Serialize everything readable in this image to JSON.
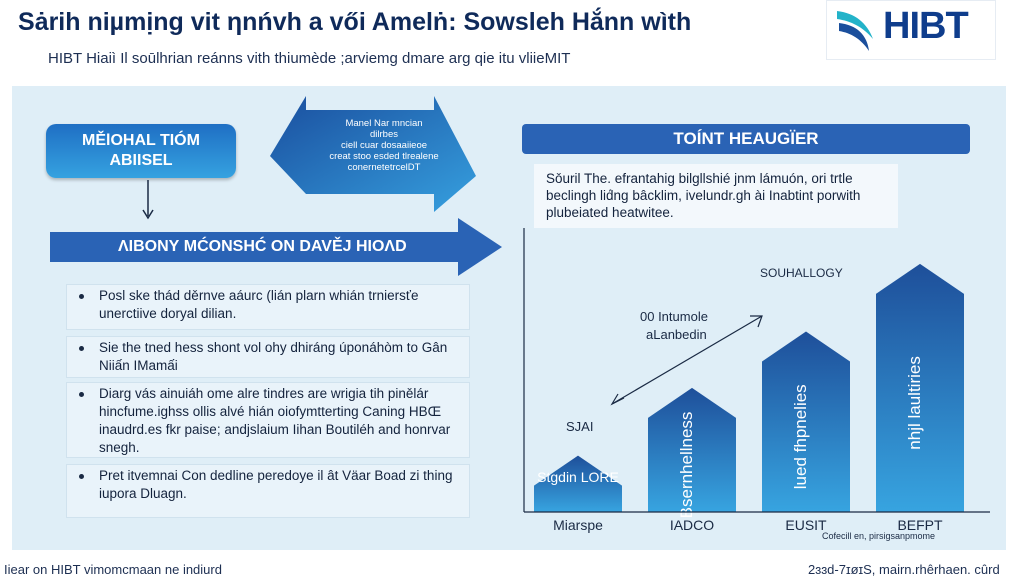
{
  "header": {
    "title": "Sȧrih niµmịng vit ηnńvh a vői Amelṅ: Sowsleh Hắnn wìth",
    "subtitle": "HIBT Hiaiì Il soūlhrian reánns vith thiumède ;arviemg dmare arg qie itu vliieMIT"
  },
  "logo": {
    "text": "HIBT",
    "brand_color": "#0f3d8c",
    "accent_color": "#23b3c9"
  },
  "left": {
    "top_box": {
      "line1": "MĚlOHAL TIÓM",
      "line2": "ABIISEL"
    },
    "callout_text": [
      "Manel Nar mncian",
      "dilrbes",
      "ciell cuar dosaaiieoe",
      "creat stoo esded tlrealene",
      "conernetetrcelDT"
    ],
    "banner": "ΛΙΒONΥ MĆONSHĆ ON DAVĚJ ΗΙOΛD",
    "bullets": [
      "Posl ske thád děrnve aáurc (lián plarn whián trniersťe unerctiive doryal dilian.",
      "Sie the tned hess shont vol ohy dhiráng úponáhòm to Gân Niiấn IMamấi",
      "Diarg vás ainuiáh ome alre tindres are wrigia tih pinělár hincfume.ighss ollis alvé hián oiofymtterting Caning HBŒ inaudrd.es fkr paise; andjslaium Iihan Boutiléh and honrvar snegh.",
      "Pret itvemnai Con dedline peredoye il ât Väar Boad zi thing iupora Dluagn."
    ]
  },
  "right": {
    "header": "TOÍNT HEAUGÏER",
    "description": "Sǒuril The. efrantahig bilgllshié jnm lámuón, ori trtle beclingh lid́ng bâcklim, ivelundr.gh ài Inabtint porwith plubeiated heatwitee.",
    "annotations": {
      "trend_label_1": "00 Intumole",
      "trend_label_2": "aLanbedin",
      "top_label": "SOUHALLOGY",
      "small_label": "SJAI"
    },
    "credit": "Cofecill en, pirsigsanpmome"
  },
  "chart_data": {
    "type": "bar",
    "categories": [
      "Miarspe",
      "IADCO",
      "EUSIT",
      "BEFPT"
    ],
    "values": [
      20,
      44,
      64,
      88
    ],
    "bar_labels": [
      "Stgdin LORE",
      "Bsernhellness",
      "lued fhpnelies",
      "nhjl laultiries"
    ],
    "ylim": [
      0,
      100
    ],
    "color": "#2f74c4"
  },
  "footer": {
    "left": "Iiear on HIBT vimomcmaan ne indiurd",
    "right": "2ɜɜd-7ɪøɪS, mairn.rhêrhaen. cûrd"
  }
}
